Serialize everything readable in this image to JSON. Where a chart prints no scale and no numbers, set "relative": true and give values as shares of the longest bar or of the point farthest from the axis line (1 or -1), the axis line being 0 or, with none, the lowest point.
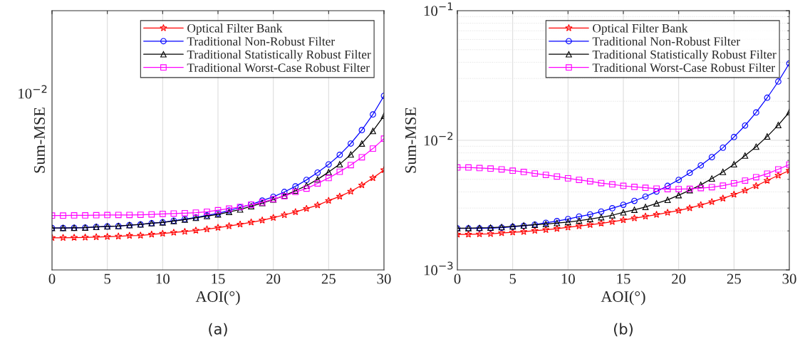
{
  "chart_data": [
    {
      "type": "line",
      "xlabel": "AOI(°)",
      "ylabel": "Sum-MSE",
      "annotations": [
        "10$^{−2}$",
        "(a)"
      ],
      "relative": true,
      "grid": true,
      "legend": "top right",
      "x": [
        0,
        1,
        2,
        3,
        4,
        5,
        6,
        7,
        8,
        9,
        10,
        11,
        12,
        13,
        14,
        15,
        16,
        17,
        18,
        19,
        20,
        21,
        22,
        23,
        24,
        25,
        26,
        27,
        28,
        29,
        30
      ],
      "xlim": [
        0,
        30
      ],
      "xticks": [
        0,
        5,
        10,
        15,
        20,
        25,
        30
      ],
      "series": [
        {
          "name": "Optical Filter Bank",
          "color": "#ff0000",
          "marker": "star",
          "values": [
            0.185,
            0.185,
            0.186,
            0.187,
            0.189,
            0.191,
            0.193,
            0.197,
            0.198,
            0.204,
            0.209,
            0.215,
            0.22,
            0.227,
            0.234,
            0.243,
            0.252,
            0.262,
            0.274,
            0.285,
            0.3,
            0.316,
            0.333,
            0.352,
            0.372,
            0.398,
            0.422,
            0.451,
            0.487,
            0.528,
            0.574
          ]
        },
        {
          "name": "Traditional Non-Robust Filter",
          "color": "#0000ff",
          "marker": "circle",
          "values": [
            0.241,
            0.241,
            0.242,
            0.243,
            0.247,
            0.25,
            0.252,
            0.257,
            0.261,
            0.268,
            0.274,
            0.283,
            0.292,
            0.301,
            0.313,
            0.325,
            0.341,
            0.359,
            0.376,
            0.398,
            0.42,
            0.448,
            0.48,
            0.517,
            0.559,
            0.606,
            0.661,
            0.726,
            0.803,
            0.893,
            1
          ]
        },
        {
          "name": "Traditional Statistically Robust Filter",
          "color": "#000000",
          "marker": "triangle",
          "values": [
            0.241,
            0.241,
            0.242,
            0.243,
            0.247,
            0.25,
            0.252,
            0.257,
            0.261,
            0.268,
            0.273,
            0.281,
            0.289,
            0.299,
            0.309,
            0.319,
            0.333,
            0.347,
            0.366,
            0.384,
            0.404,
            0.427,
            0.455,
            0.484,
            0.52,
            0.562,
            0.607,
            0.663,
            0.726,
            0.798,
            0.885
          ]
        },
        {
          "name": "Traditional Worst-Case Robust Filter",
          "color": "#ff00ff",
          "marker": "square",
          "values": [
            0.312,
            0.312,
            0.313,
            0.313,
            0.314,
            0.315,
            0.316,
            0.316,
            0.317,
            0.319,
            0.322,
            0.324,
            0.326,
            0.329,
            0.334,
            0.343,
            0.352,
            0.362,
            0.375,
            0.388,
            0.407,
            0.424,
            0.448,
            0.467,
            0.497,
            0.528,
            0.564,
            0.602,
            0.647,
            0.697,
            0.754
          ]
        }
      ]
    },
    {
      "type": "line",
      "xlabel": "AOI(°)",
      "ylabel": "Sum-MSE",
      "annotations": [
        "(b)"
      ],
      "log": "y",
      "grid": true,
      "legend": "top right",
      "x": [
        0,
        1,
        2,
        3,
        4,
        5,
        6,
        7,
        8,
        9,
        10,
        11,
        12,
        13,
        14,
        15,
        16,
        17,
        18,
        19,
        20,
        21,
        22,
        23,
        24,
        25,
        26,
        27,
        28,
        29,
        30
      ],
      "xlim": [
        0,
        30
      ],
      "xticks": [
        0,
        5,
        10,
        15,
        20,
        25,
        30
      ],
      "ylim": [
        0.001,
        0.1
      ],
      "yticks": [
        {
          "value": 0.001,
          "label": "10$^{−3}$"
        },
        {
          "value": 0.01,
          "label": "10$^{−2}$"
        },
        {
          "value": 0.1,
          "label": "10$^{−1}$"
        }
      ],
      "series": [
        {
          "name": "Optical Filter Bank",
          "color": "#ff0000",
          "marker": "star",
          "values": [
            0.00188,
            0.00188,
            0.00189,
            0.0019,
            0.00193,
            0.00195,
            0.00197,
            0.00201,
            0.00204,
            0.00208,
            0.00213,
            0.00218,
            0.00223,
            0.00229,
            0.00235,
            0.00243,
            0.00251,
            0.00259,
            0.00267,
            0.00277,
            0.00287,
            0.003,
            0.00317,
            0.00335,
            0.00356,
            0.00382,
            0.0041,
            0.00445,
            0.00489,
            0.00536,
            0.00583
          ]
        },
        {
          "name": "Traditional Non-Robust Filter",
          "color": "#0000ff",
          "marker": "circle",
          "values": [
            0.00209,
            0.00209,
            0.00209,
            0.0021,
            0.00212,
            0.00215,
            0.00219,
            0.00224,
            0.00231,
            0.00238,
            0.00247,
            0.00258,
            0.00268,
            0.00282,
            0.00299,
            0.00318,
            0.00341,
            0.00368,
            0.00403,
            0.00445,
            0.00495,
            0.00561,
            0.0064,
            0.00742,
            0.00877,
            0.0106,
            0.013,
            0.0164,
            0.0213,
            0.0284,
            0.0392
          ]
        },
        {
          "name": "Traditional Statistically Robust Filter",
          "color": "#000000",
          "marker": "triangle",
          "values": [
            0.0021,
            0.0021,
            0.00211,
            0.00212,
            0.00214,
            0.00217,
            0.0022,
            0.00223,
            0.00226,
            0.0023,
            0.00234,
            0.0024,
            0.00247,
            0.00255,
            0.00264,
            0.00278,
            0.00291,
            0.00306,
            0.00326,
            0.00347,
            0.00377,
            0.00412,
            0.00453,
            0.00507,
            0.0057,
            0.00653,
            0.00762,
            0.00893,
            0.0107,
            0.0131,
            0.0165
          ]
        },
        {
          "name": "Traditional Worst-Case Robust Filter",
          "color": "#ff00ff",
          "marker": "square",
          "values": [
            0.00617,
            0.00617,
            0.00611,
            0.00605,
            0.00597,
            0.00583,
            0.0057,
            0.00555,
            0.00541,
            0.00526,
            0.00509,
            0.00495,
            0.00483,
            0.00468,
            0.00457,
            0.00445,
            0.00437,
            0.0043,
            0.00424,
            0.0042,
            0.0042,
            0.00422,
            0.00428,
            0.00435,
            0.00447,
            0.00466,
            0.00489,
            0.00519,
            0.00553,
            0.00597,
            0.0065
          ]
        }
      ]
    }
  ]
}
